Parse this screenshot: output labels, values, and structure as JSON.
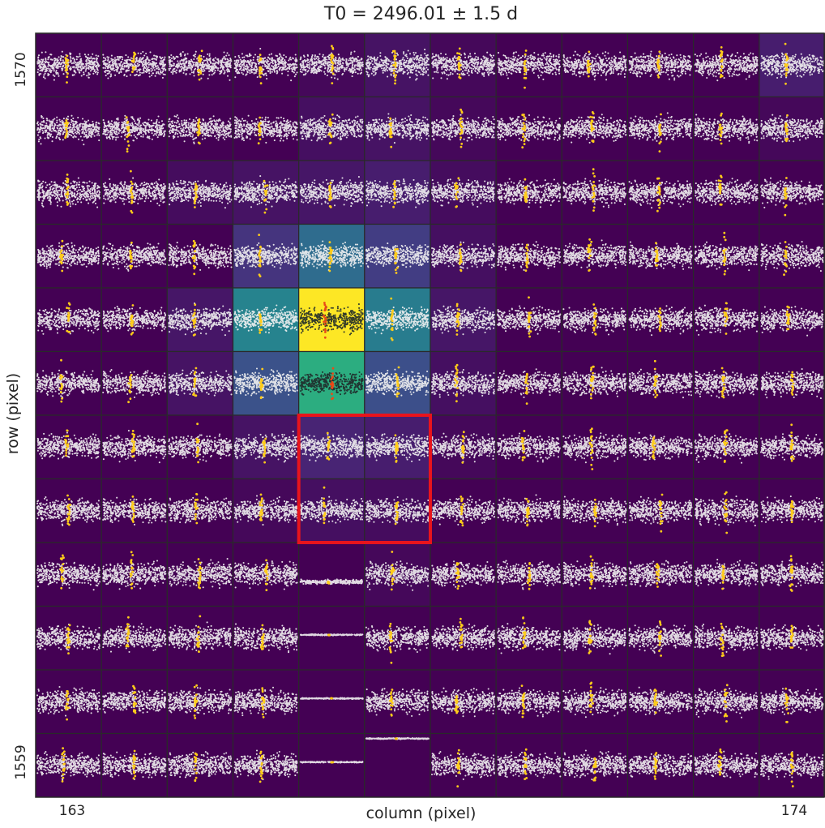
{
  "chart_data": {
    "type": "pixel-grid-lightcurves",
    "title": "T0 = 2496.01 ± 1.5 d",
    "xlabel": "column (pixel)",
    "ylabel": "row (pixel)",
    "x_ticks": [
      {
        "value": 163,
        "label": "163"
      },
      {
        "value": 174,
        "label": "174"
      }
    ],
    "y_ticks": [
      {
        "value": 1570,
        "label": "1570"
      },
      {
        "value": 1559,
        "label": "1559"
      }
    ],
    "columns": [
      163,
      164,
      165,
      166,
      167,
      168,
      169,
      170,
      171,
      172,
      173,
      174
    ],
    "rows": [
      1570,
      1569,
      1568,
      1567,
      1566,
      1565,
      1564,
      1563,
      1562,
      1561,
      1560,
      1559
    ],
    "flux_levels": [
      [
        0,
        0,
        0,
        0,
        0.02,
        0.05,
        0.02,
        0,
        0,
        0,
        0,
        0.08
      ],
      [
        0,
        0,
        0,
        0,
        0.04,
        0.05,
        0.02,
        0,
        0,
        0,
        0,
        0.02
      ],
      [
        0,
        0,
        0.03,
        0.05,
        0.06,
        0.08,
        0.03,
        0,
        0,
        0,
        0,
        0
      ],
      [
        0,
        0,
        0,
        0.15,
        0.35,
        0.18,
        0.04,
        0,
        0,
        0,
        0,
        0
      ],
      [
        0,
        0,
        0.06,
        0.45,
        1.0,
        0.42,
        0.06,
        0,
        0,
        0,
        0,
        0
      ],
      [
        0,
        0,
        0.05,
        0.25,
        0.62,
        0.24,
        0.04,
        0,
        0,
        0,
        0,
        0
      ],
      [
        0,
        0,
        0,
        0.05,
        0.1,
        0.08,
        0.02,
        0,
        0,
        0,
        0,
        0
      ],
      [
        0,
        0,
        0,
        0.02,
        0.04,
        0.03,
        0,
        0,
        0,
        0,
        0,
        0
      ],
      [
        0,
        0,
        0,
        0,
        0,
        0.02,
        0,
        0,
        0,
        0,
        0,
        0
      ],
      [
        0,
        0,
        0,
        0,
        0,
        0,
        0,
        0,
        0,
        0,
        0,
        0
      ],
      [
        0,
        0,
        0,
        0,
        0,
        0,
        0,
        0,
        0,
        0,
        0,
        0
      ],
      [
        0,
        0,
        0,
        0,
        0,
        0,
        0,
        0,
        0,
        0,
        0,
        0
      ]
    ],
    "aperture": {
      "columns": [
        167,
        168
      ],
      "rows": [
        1564,
        1563
      ],
      "color": "#e8141c"
    },
    "point_colors": {
      "normal": "#f2f2f2",
      "bright": "#1f2a2a",
      "in_transit": "#ffcc1a",
      "in_transit_bright": "#e84a18"
    },
    "colormap": "viridis"
  }
}
